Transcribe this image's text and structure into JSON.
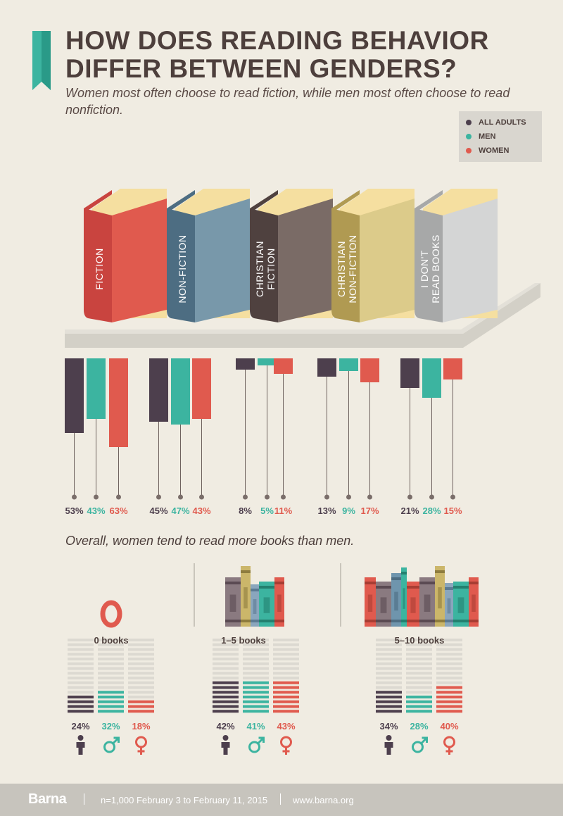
{
  "title_line1": "HOW DOES READING BEHAVIOR",
  "title_line2": "DIFFER BETWEEN GENDERS?",
  "subtitle": "Women most often choose to read fiction, while men most often choose to read nonfiction.",
  "legend": [
    {
      "label": "ALL ADULTS",
      "color": "#4d3f4d"
    },
    {
      "label": "MEN",
      "color": "#3cb4a0"
    },
    {
      "label": "WOMEN",
      "color": "#e05a4e"
    }
  ],
  "overall_text": "Overall, women tend to read more books than men.",
  "chart_data": [
    {
      "type": "bar",
      "title": "HOW DOES READING BEHAVIOR DIFFER BETWEEN GENDERS?",
      "categories": [
        {
          "lines": [
            "FICTION"
          ]
        },
        {
          "lines": [
            "NON-FICTION"
          ]
        },
        {
          "lines": [
            "CHRISTIAN",
            "FICTION"
          ]
        },
        {
          "lines": [
            "CHRISTIAN",
            "NON-FICTION"
          ]
        },
        {
          "lines": [
            "I DON'T",
            "READ BOOKS"
          ]
        }
      ],
      "series": [
        {
          "name": "ALL ADULTS",
          "color": "#4d3f4d",
          "values": [
            53,
            45,
            8,
            13,
            21
          ],
          "labels": [
            "53%",
            "45%",
            "8%",
            "13%",
            "21%"
          ]
        },
        {
          "name": "MEN",
          "color": "#3cb4a0",
          "values": [
            43,
            47,
            5,
            9,
            28
          ],
          "labels": [
            "43%",
            "47%",
            "5%",
            "9%",
            "28%"
          ]
        },
        {
          "name": "WOMEN",
          "color": "#e05a4e",
          "values": [
            63,
            43,
            11,
            17,
            15
          ],
          "labels": [
            "63%",
            "43%",
            "11%",
            "17%",
            "15%"
          ]
        }
      ],
      "book_colors": [
        {
          "spine": "#c9443f",
          "front": "#e05a4e"
        },
        {
          "spine": "#4d6d82",
          "front": "#7898aa"
        },
        {
          "spine": "#4f413f",
          "front": "#7a6b66"
        },
        {
          "spine": "#b09a52",
          "front": "#dccb8a"
        },
        {
          "spine": "#a7a8a8",
          "front": "#d4d5d5"
        }
      ]
    },
    {
      "type": "bar",
      "title": "Overall, women tend to read more books than men.",
      "categories": [
        "0 books",
        "1–5 books",
        "5–10 books"
      ],
      "series": [
        {
          "name": "ALL ADULTS",
          "values": [
            24,
            42,
            34
          ],
          "labels": [
            "24%",
            "42%",
            "34%"
          ]
        },
        {
          "name": "MEN",
          "values": [
            32,
            41,
            28
          ],
          "labels": [
            "32%",
            "41%",
            "28%"
          ]
        },
        {
          "name": "WOMEN",
          "values": [
            18,
            43,
            40
          ],
          "labels": [
            "18%",
            "43%",
            "40%"
          ]
        }
      ]
    }
  ],
  "gender_icons": [
    "person-icon",
    "male-symbol-icon",
    "female-symbol-icon"
  ],
  "footer": {
    "brand": "Barna",
    "sample": "n=1,000 February 3 to February 11, 2015",
    "url": "www.barna.org"
  }
}
